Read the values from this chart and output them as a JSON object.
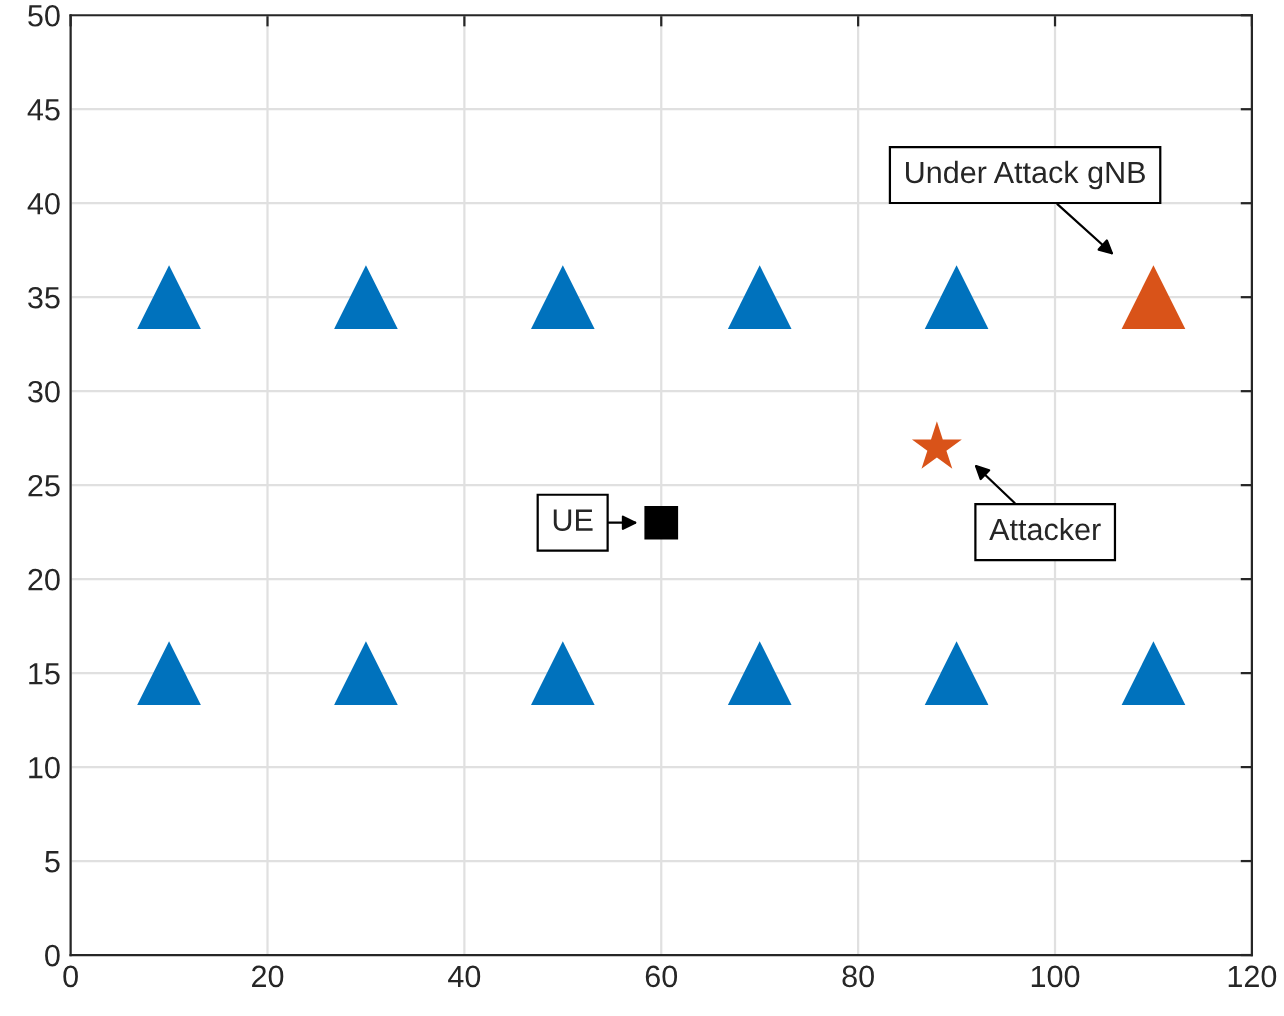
{
  "chart_data": {
    "type": "scatter",
    "xlim": [
      0,
      120
    ],
    "ylim": [
      0,
      50
    ],
    "xticks": [
      0,
      20,
      40,
      60,
      80,
      100,
      120
    ],
    "yticks": [
      0,
      5,
      10,
      15,
      20,
      25,
      30,
      35,
      40,
      45,
      50
    ],
    "grid": true,
    "series": [
      {
        "color": "#0072bd",
        "marker": "triangle",
        "x": [
          10,
          30,
          50,
          70,
          90,
          10,
          30,
          50,
          70,
          90,
          110
        ],
        "values": [
          35,
          35,
          35,
          35,
          35,
          15,
          15,
          15,
          15,
          15,
          15
        ]
      },
      {
        "color": "#d95319",
        "marker": "triangle",
        "x": [
          110
        ],
        "values": [
          35
        ]
      },
      {
        "color": "#d95319",
        "marker": "star",
        "x": [
          88
        ],
        "values": [
          27
        ]
      },
      {
        "color": "#000000",
        "marker": "square",
        "x": [
          60
        ],
        "values": [
          23
        ]
      }
    ],
    "annotations": [
      "Under Attack gNB",
      "Attacker",
      "UE"
    ]
  }
}
